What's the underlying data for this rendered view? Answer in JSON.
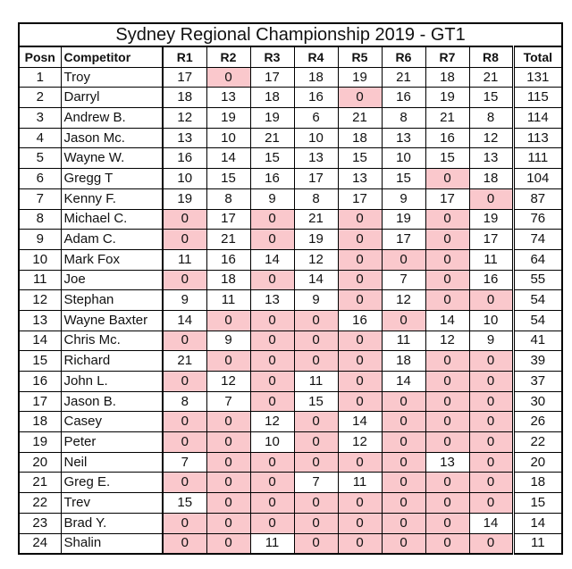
{
  "title": "Sydney Regional Championship 2019 - GT1",
  "headers": [
    "Posn",
    "Competitor",
    "R1",
    "R2",
    "R3",
    "R4",
    "R5",
    "R6",
    "R7",
    "R8",
    "Total"
  ],
  "zero_highlight_color": "#fac8cc",
  "rows": [
    {
      "posn": "1",
      "name": "Troy",
      "r": [
        17,
        0,
        17,
        18,
        19,
        21,
        18,
        21
      ],
      "total": 131
    },
    {
      "posn": "2",
      "name": "Darryl",
      "r": [
        18,
        13,
        18,
        16,
        0,
        16,
        19,
        15
      ],
      "total": 115
    },
    {
      "posn": "3",
      "name": "Andrew B.",
      "r": [
        12,
        19,
        19,
        6,
        21,
        8,
        21,
        8
      ],
      "total": 114
    },
    {
      "posn": "4",
      "name": "Jason Mc.",
      "r": [
        13,
        10,
        21,
        10,
        18,
        13,
        16,
        12
      ],
      "total": 113
    },
    {
      "posn": "5",
      "name": "Wayne W.",
      "r": [
        16,
        14,
        15,
        13,
        15,
        10,
        15,
        13
      ],
      "total": 111
    },
    {
      "posn": "6",
      "name": "Gregg T",
      "r": [
        10,
        15,
        16,
        17,
        13,
        15,
        0,
        18
      ],
      "total": 104
    },
    {
      "posn": "7",
      "name": "Kenny F.",
      "r": [
        19,
        8,
        9,
        8,
        17,
        9,
        17,
        0
      ],
      "total": 87
    },
    {
      "posn": "8",
      "name": "Michael C.",
      "r": [
        0,
        17,
        0,
        21,
        0,
        19,
        0,
        19
      ],
      "total": 76
    },
    {
      "posn": "9",
      "name": "Adam C.",
      "r": [
        0,
        21,
        0,
        19,
        0,
        17,
        0,
        17
      ],
      "total": 74
    },
    {
      "posn": "10",
      "name": "Mark Fox",
      "r": [
        11,
        16,
        14,
        12,
        0,
        0,
        0,
        11
      ],
      "total": 64
    },
    {
      "posn": "11",
      "name": "Joe",
      "r": [
        0,
        18,
        0,
        14,
        0,
        7,
        0,
        16
      ],
      "total": 55
    },
    {
      "posn": "12",
      "name": "Stephan",
      "r": [
        9,
        11,
        13,
        9,
        0,
        12,
        0,
        0
      ],
      "total": 54
    },
    {
      "posn": "13",
      "name": "Wayne Baxter",
      "r": [
        14,
        0,
        0,
        0,
        16,
        0,
        14,
        10
      ],
      "total": 54
    },
    {
      "posn": "14",
      "name": "Chris Mc.",
      "r": [
        0,
        9,
        0,
        0,
        0,
        11,
        12,
        9
      ],
      "total": 41
    },
    {
      "posn": "15",
      "name": "Richard",
      "r": [
        21,
        0,
        0,
        0,
        0,
        18,
        0,
        0
      ],
      "total": 39
    },
    {
      "posn": "16",
      "name": "John L.",
      "r": [
        0,
        12,
        0,
        11,
        0,
        14,
        0,
        0
      ],
      "total": 37
    },
    {
      "posn": "17",
      "name": "Jason B.",
      "r": [
        8,
        7,
        0,
        15,
        0,
        0,
        0,
        0
      ],
      "total": 30
    },
    {
      "posn": "18",
      "name": "Casey",
      "r": [
        0,
        0,
        12,
        0,
        14,
        0,
        0,
        0
      ],
      "total": 26
    },
    {
      "posn": "19",
      "name": "Peter",
      "r": [
        0,
        0,
        10,
        0,
        12,
        0,
        0,
        0
      ],
      "total": 22
    },
    {
      "posn": "20",
      "name": "Neil",
      "r": [
        7,
        0,
        0,
        0,
        0,
        0,
        13,
        0
      ],
      "total": 20
    },
    {
      "posn": "21",
      "name": "Greg E.",
      "r": [
        0,
        0,
        0,
        7,
        11,
        0,
        0,
        0
      ],
      "total": 18
    },
    {
      "posn": "22",
      "name": "Trev",
      "r": [
        15,
        0,
        0,
        0,
        0,
        0,
        0,
        0
      ],
      "total": 15
    },
    {
      "posn": "23",
      "name": "Brad Y.",
      "r": [
        0,
        0,
        0,
        0,
        0,
        0,
        0,
        14
      ],
      "total": 14
    },
    {
      "posn": "24",
      "name": "Shalin",
      "r": [
        0,
        0,
        11,
        0,
        0,
        0,
        0,
        0
      ],
      "total": 11
    }
  ]
}
